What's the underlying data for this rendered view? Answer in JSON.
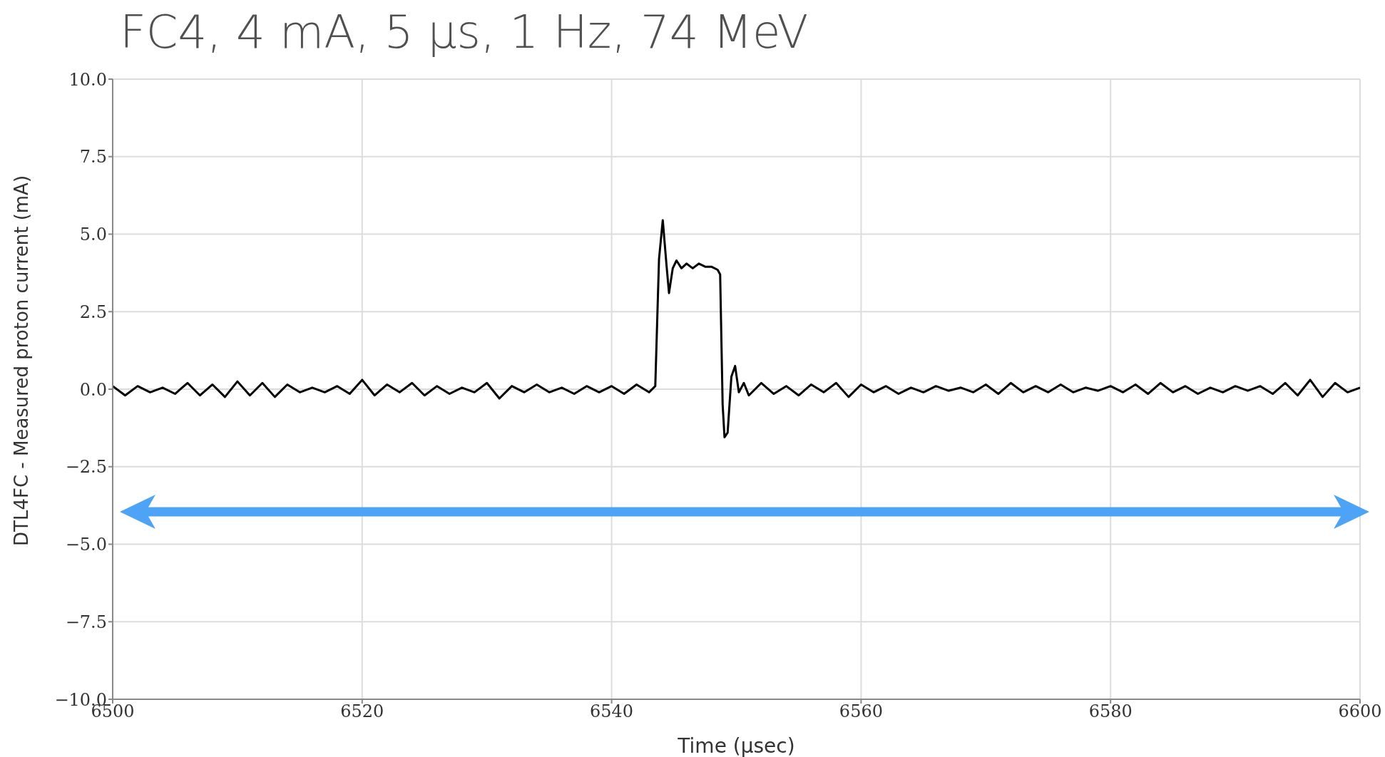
{
  "chart_data": {
    "type": "line",
    "title": "FC4, 4 mA, 5 μs, 1 Hz, 74 MeV",
    "xlabel": "Time (μsec)",
    "ylabel": "DTL4FC - Measured proton current (mA)",
    "xlim": [
      6500,
      6600
    ],
    "xticks": [
      6500,
      6520,
      6540,
      6560,
      6580,
      6600
    ],
    "ylim": [
      -10,
      10
    ],
    "yticks": [
      {
        "value": -10,
        "label": "−10.0"
      },
      {
        "value": -7.5,
        "label": "−7.5"
      },
      {
        "value": -5,
        "label": "−5.0"
      },
      {
        "value": -2.5,
        "label": "−2.5"
      },
      {
        "value": 0,
        "label": "0.0"
      },
      {
        "value": 2.5,
        "label": "2.5"
      },
      {
        "value": 5,
        "label": "5.0"
      },
      {
        "value": 7.5,
        "label": "7.5"
      },
      {
        "value": 10,
        "label": "10.0"
      }
    ],
    "grid": true,
    "legend": false,
    "marker": "none",
    "line_style": "solid",
    "series": [
      {
        "color": "#000000",
        "x": [
          6500,
          6501,
          6502,
          6503,
          6504,
          6505,
          6506,
          6507,
          6508,
          6509,
          6510,
          6511,
          6512,
          6513,
          6514,
          6515,
          6516,
          6517,
          6518,
          6519,
          6520,
          6521,
          6522,
          6523,
          6524,
          6525,
          6526,
          6527,
          6528,
          6529,
          6530,
          6531,
          6532,
          6533,
          6534,
          6535,
          6536,
          6537,
          6538,
          6539,
          6540,
          6541,
          6542,
          6543,
          6543.5,
          6543.8,
          6544.1,
          6544.4,
          6544.6,
          6544.9,
          6545.2,
          6545.6,
          6546,
          6546.5,
          6547,
          6547.5,
          6548,
          6548.5,
          6548.7,
          6548.9,
          6549.05,
          6549.3,
          6549.6,
          6549.9,
          6550.2,
          6550.6,
          6551,
          6552,
          6553,
          6554,
          6555,
          6556,
          6557,
          6558,
          6559,
          6560,
          6561,
          6562,
          6563,
          6564,
          6565,
          6566,
          6567,
          6568,
          6569,
          6570,
          6571,
          6572,
          6573,
          6574,
          6575,
          6576,
          6577,
          6578,
          6579,
          6580,
          6581,
          6582,
          6583,
          6584,
          6585,
          6586,
          6587,
          6588,
          6589,
          6590,
          6591,
          6592,
          6593,
          6594,
          6595,
          6596,
          6597,
          6598,
          6599,
          6600
        ],
        "values": [
          0.1,
          -0.2,
          0.1,
          -0.1,
          0.05,
          -0.15,
          0.2,
          -0.2,
          0.15,
          -0.25,
          0.25,
          -0.2,
          0.2,
          -0.25,
          0.15,
          -0.1,
          0.05,
          -0.1,
          0.1,
          -0.15,
          0.3,
          -0.2,
          0.15,
          -0.1,
          0.2,
          -0.2,
          0.1,
          -0.15,
          0.05,
          -0.1,
          0.2,
          -0.3,
          0.1,
          -0.1,
          0.15,
          -0.1,
          0.05,
          -0.15,
          0.1,
          -0.1,
          0.1,
          -0.15,
          0.15,
          -0.1,
          0.1,
          4.2,
          5.45,
          4.0,
          3.1,
          3.9,
          4.15,
          3.9,
          4.05,
          3.9,
          4.05,
          3.95,
          3.95,
          3.85,
          3.7,
          -0.5,
          -1.55,
          -1.4,
          0.4,
          0.75,
          -0.1,
          0.2,
          -0.2,
          0.2,
          -0.15,
          0.1,
          -0.2,
          0.15,
          -0.1,
          0.2,
          -0.25,
          0.15,
          -0.1,
          0.1,
          -0.15,
          0.05,
          -0.1,
          0.1,
          -0.05,
          0.05,
          -0.1,
          0.15,
          -0.15,
          0.2,
          -0.1,
          0.1,
          -0.1,
          0.15,
          -0.1,
          0.05,
          -0.05,
          0.1,
          -0.1,
          0.15,
          -0.15,
          0.2,
          -0.1,
          0.1,
          -0.15,
          0.05,
          -0.1,
          0.1,
          -0.05,
          0.1,
          -0.15,
          0.2,
          -0.2,
          0.3,
          -0.25,
          0.2,
          -0.1,
          0.05
        ]
      }
    ]
  }
}
